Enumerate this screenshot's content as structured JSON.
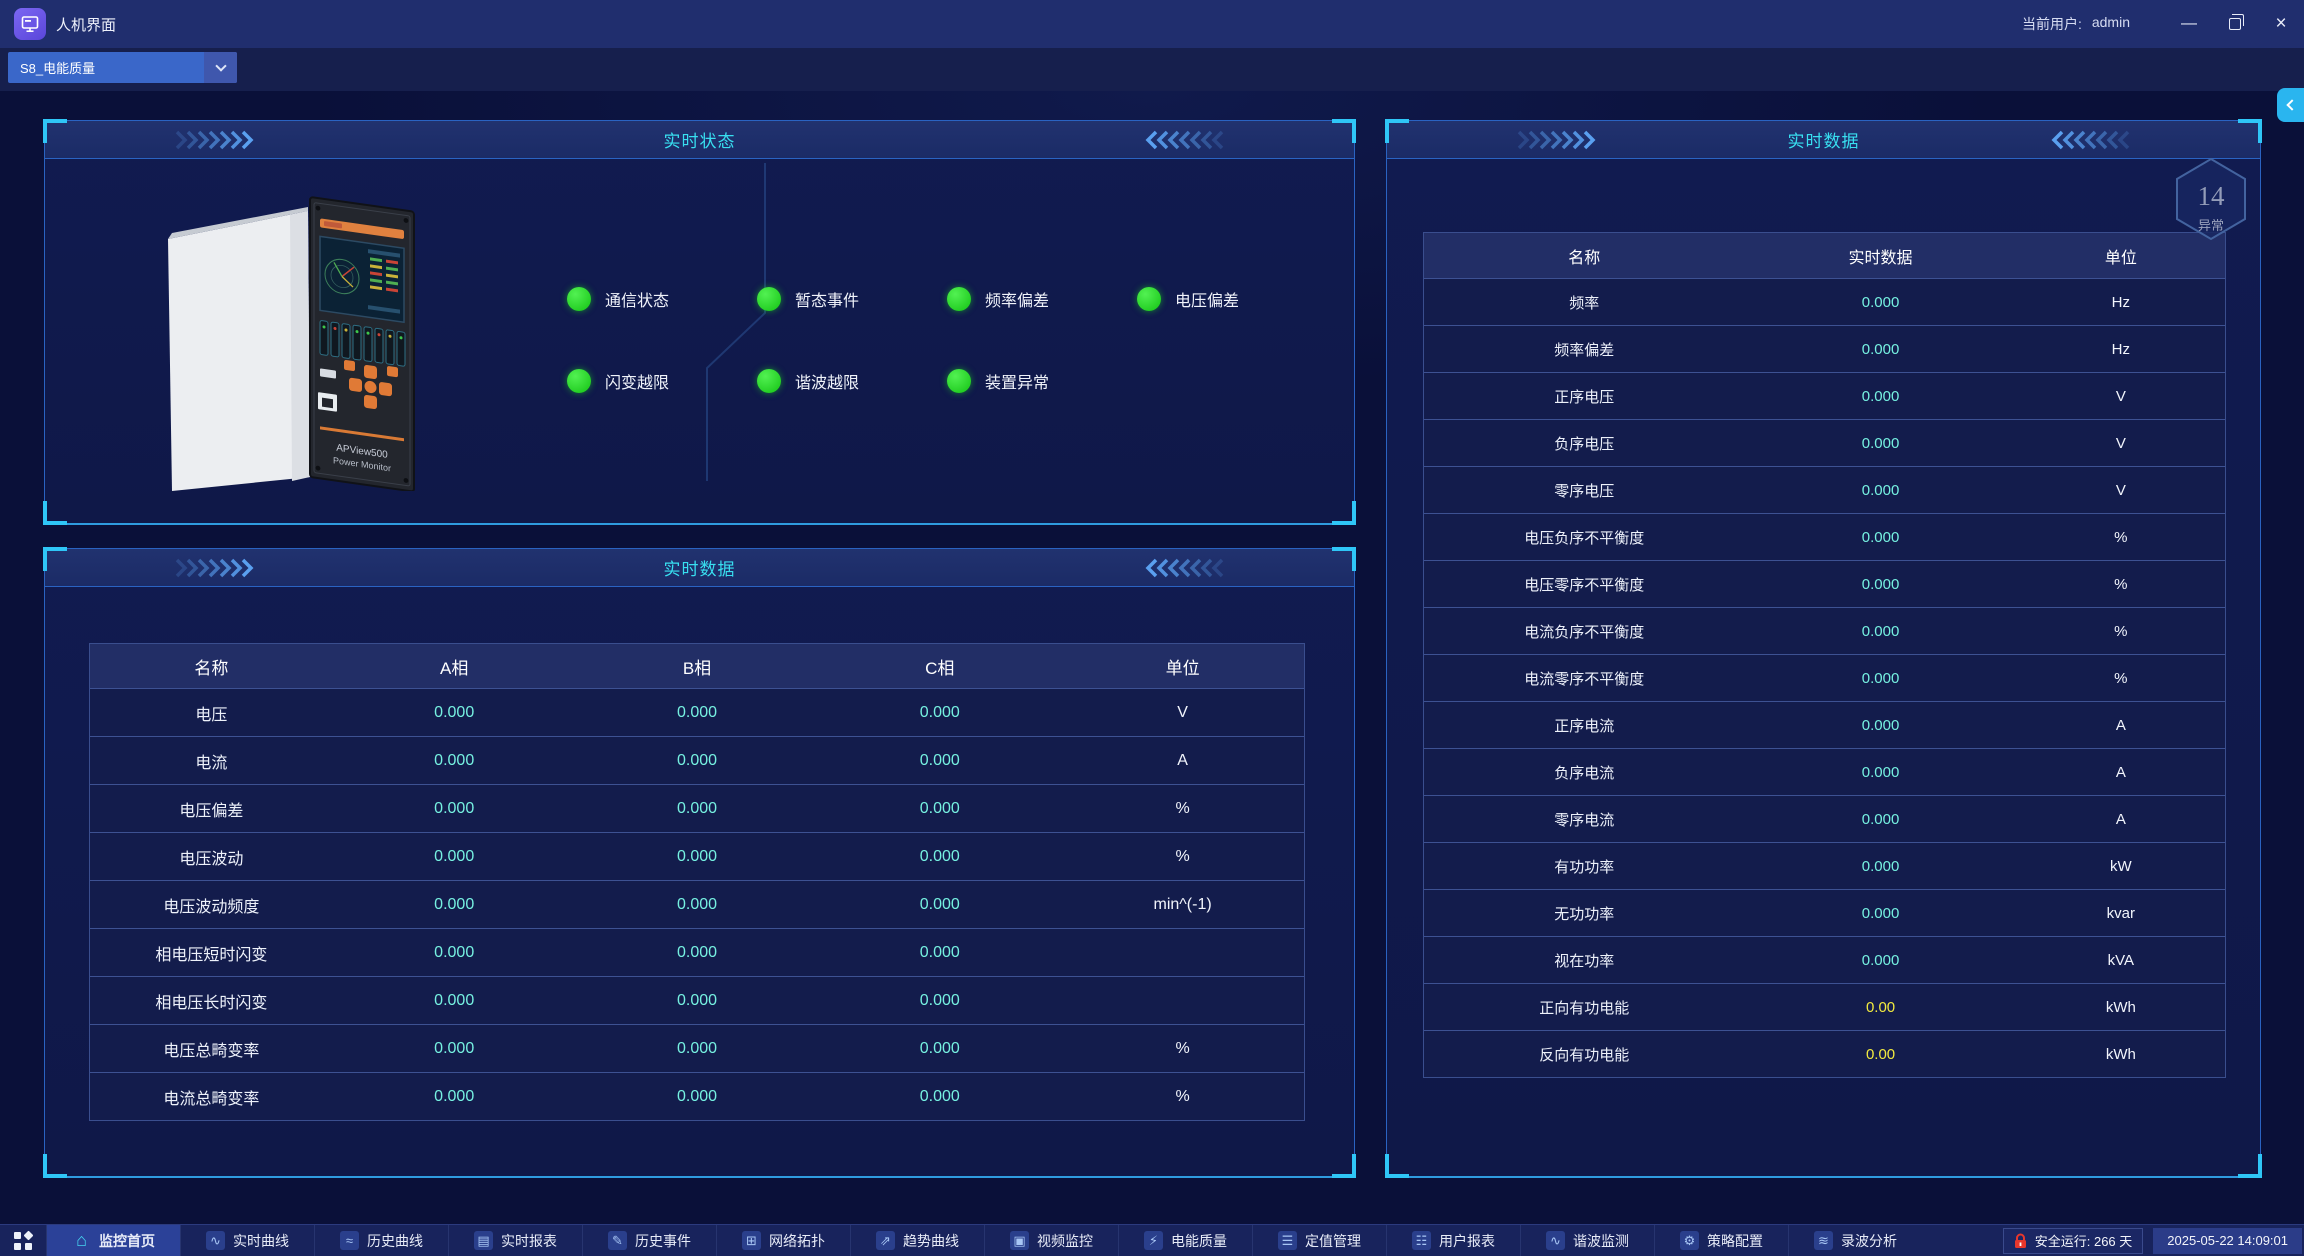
{
  "window": {
    "app_title": "人机界面",
    "user_label": "当前用户:",
    "user_name": "admin",
    "minimize_glyph": "—",
    "close_glyph": "×"
  },
  "toolbar": {
    "device_selector": "S8_电能质量"
  },
  "colors": {
    "accent_cyan": "#38dff0",
    "value_cyan": "#76f1e1",
    "value_yellow": "#f2ea3f",
    "led_green": "#1ed31e",
    "panel_border": "#2a63c2"
  },
  "status_panel": {
    "title": "实时状态",
    "device_line1": "APView500",
    "device_line2": "Power Monitor",
    "indicators_row1": [
      "通信状态",
      "暂态事件",
      "频率偏差",
      "电压偏差"
    ],
    "indicators_row2": [
      "闪变越限",
      "谐波越限",
      "装置异常"
    ]
  },
  "phase_table": {
    "title": "实时数据",
    "headers": [
      "名称",
      "A相",
      "B相",
      "C相",
      "单位"
    ],
    "rows": [
      {
        "name": "电压",
        "a": "0.000",
        "b": "0.000",
        "c": "0.000",
        "unit": "V"
      },
      {
        "name": "电流",
        "a": "0.000",
        "b": "0.000",
        "c": "0.000",
        "unit": "A"
      },
      {
        "name": "电压偏差",
        "a": "0.000",
        "b": "0.000",
        "c": "0.000",
        "unit": "%"
      },
      {
        "name": "电压波动",
        "a": "0.000",
        "b": "0.000",
        "c": "0.000",
        "unit": "%"
      },
      {
        "name": "电压波动频度",
        "a": "0.000",
        "b": "0.000",
        "c": "0.000",
        "unit": "min^(-1)"
      },
      {
        "name": "相电压短时闪变",
        "a": "0.000",
        "b": "0.000",
        "c": "0.000",
        "unit": ""
      },
      {
        "name": "相电压长时闪变",
        "a": "0.000",
        "b": "0.000",
        "c": "0.000",
        "unit": ""
      },
      {
        "name": "电压总畸变率",
        "a": "0.000",
        "b": "0.000",
        "c": "0.000",
        "unit": "%"
      },
      {
        "name": "电流总畸变率",
        "a": "0.000",
        "b": "0.000",
        "c": "0.000",
        "unit": "%"
      }
    ]
  },
  "realtime_table": {
    "title": "实时数据",
    "headers": [
      "名称",
      "实时数据",
      "单位"
    ],
    "badge": {
      "count": "14",
      "label": "异常"
    },
    "rows": [
      {
        "name": "频率",
        "value": "0.000",
        "unit": "Hz",
        "highlight": false
      },
      {
        "name": "频率偏差",
        "value": "0.000",
        "unit": "Hz",
        "highlight": false
      },
      {
        "name": "正序电压",
        "value": "0.000",
        "unit": "V",
        "highlight": false
      },
      {
        "name": "负序电压",
        "value": "0.000",
        "unit": "V",
        "highlight": false
      },
      {
        "name": "零序电压",
        "value": "0.000",
        "unit": "V",
        "highlight": false
      },
      {
        "name": "电压负序不平衡度",
        "value": "0.000",
        "unit": "%",
        "highlight": false
      },
      {
        "name": "电压零序不平衡度",
        "value": "0.000",
        "unit": "%",
        "highlight": false
      },
      {
        "name": "电流负序不平衡度",
        "value": "0.000",
        "unit": "%",
        "highlight": false
      },
      {
        "name": "电流零序不平衡度",
        "value": "0.000",
        "unit": "%",
        "highlight": false
      },
      {
        "name": "正序电流",
        "value": "0.000",
        "unit": "A",
        "highlight": false
      },
      {
        "name": "负序电流",
        "value": "0.000",
        "unit": "A",
        "highlight": false
      },
      {
        "name": "零序电流",
        "value": "0.000",
        "unit": "A",
        "highlight": false
      },
      {
        "name": "有功功率",
        "value": "0.000",
        "unit": "kW",
        "highlight": false
      },
      {
        "name": "无功功率",
        "value": "0.000",
        "unit": "kvar",
        "highlight": false
      },
      {
        "name": "视在功率",
        "value": "0.000",
        "unit": "kVA",
        "highlight": false
      },
      {
        "name": "正向有功电能",
        "value": "0.00",
        "unit": "kWh",
        "highlight": true
      },
      {
        "name": "反向有功电能",
        "value": "0.00",
        "unit": "kWh",
        "highlight": true
      }
    ]
  },
  "nav": {
    "tabs": [
      {
        "id": "monitor-home",
        "icon": "home",
        "label": "监控首页",
        "active": true
      },
      {
        "id": "realtime-curve",
        "icon": "curve",
        "label": "实时曲线",
        "active": false
      },
      {
        "id": "history-curve",
        "icon": "history-curve",
        "label": "历史曲线",
        "active": false
      },
      {
        "id": "realtime-report",
        "icon": "report",
        "label": "实时报表",
        "active": false
      },
      {
        "id": "history-event",
        "icon": "event",
        "label": "历史事件",
        "active": false
      },
      {
        "id": "network-topology",
        "icon": "topology",
        "label": "网络拓扑",
        "active": false
      },
      {
        "id": "trend-curve",
        "icon": "trend",
        "label": "趋势曲线",
        "active": false
      },
      {
        "id": "video-monitor",
        "icon": "video",
        "label": "视频监控",
        "active": false
      },
      {
        "id": "power-quality",
        "icon": "power",
        "label": "电能质量",
        "active": false
      },
      {
        "id": "setpoint-management",
        "icon": "setpoint",
        "label": "定值管理",
        "active": false
      },
      {
        "id": "user-report",
        "icon": "user-report",
        "label": "用户报表",
        "active": false
      },
      {
        "id": "harmonic-monitor",
        "icon": "harmonic",
        "label": "谐波监测",
        "active": false
      },
      {
        "id": "strategy-config",
        "icon": "strategy",
        "label": "策略配置",
        "active": false
      },
      {
        "id": "wave-analysis",
        "icon": "wave",
        "label": "录波分析",
        "active": false
      }
    ]
  },
  "icon_glyphs": {
    "home": "⌂",
    "curve": "∿",
    "history-curve": "≈",
    "report": "▤",
    "event": "✎",
    "topology": "⊞",
    "trend": "⇗",
    "video": "▣",
    "power": "⚡",
    "setpoint": "☰",
    "user-report": "☷",
    "harmonic": "∿",
    "strategy": "⚙",
    "wave": "≋"
  },
  "statusbar": {
    "safe_run": "安全运行: 266 天",
    "datetime": "2025-05-22 14:09:01"
  }
}
